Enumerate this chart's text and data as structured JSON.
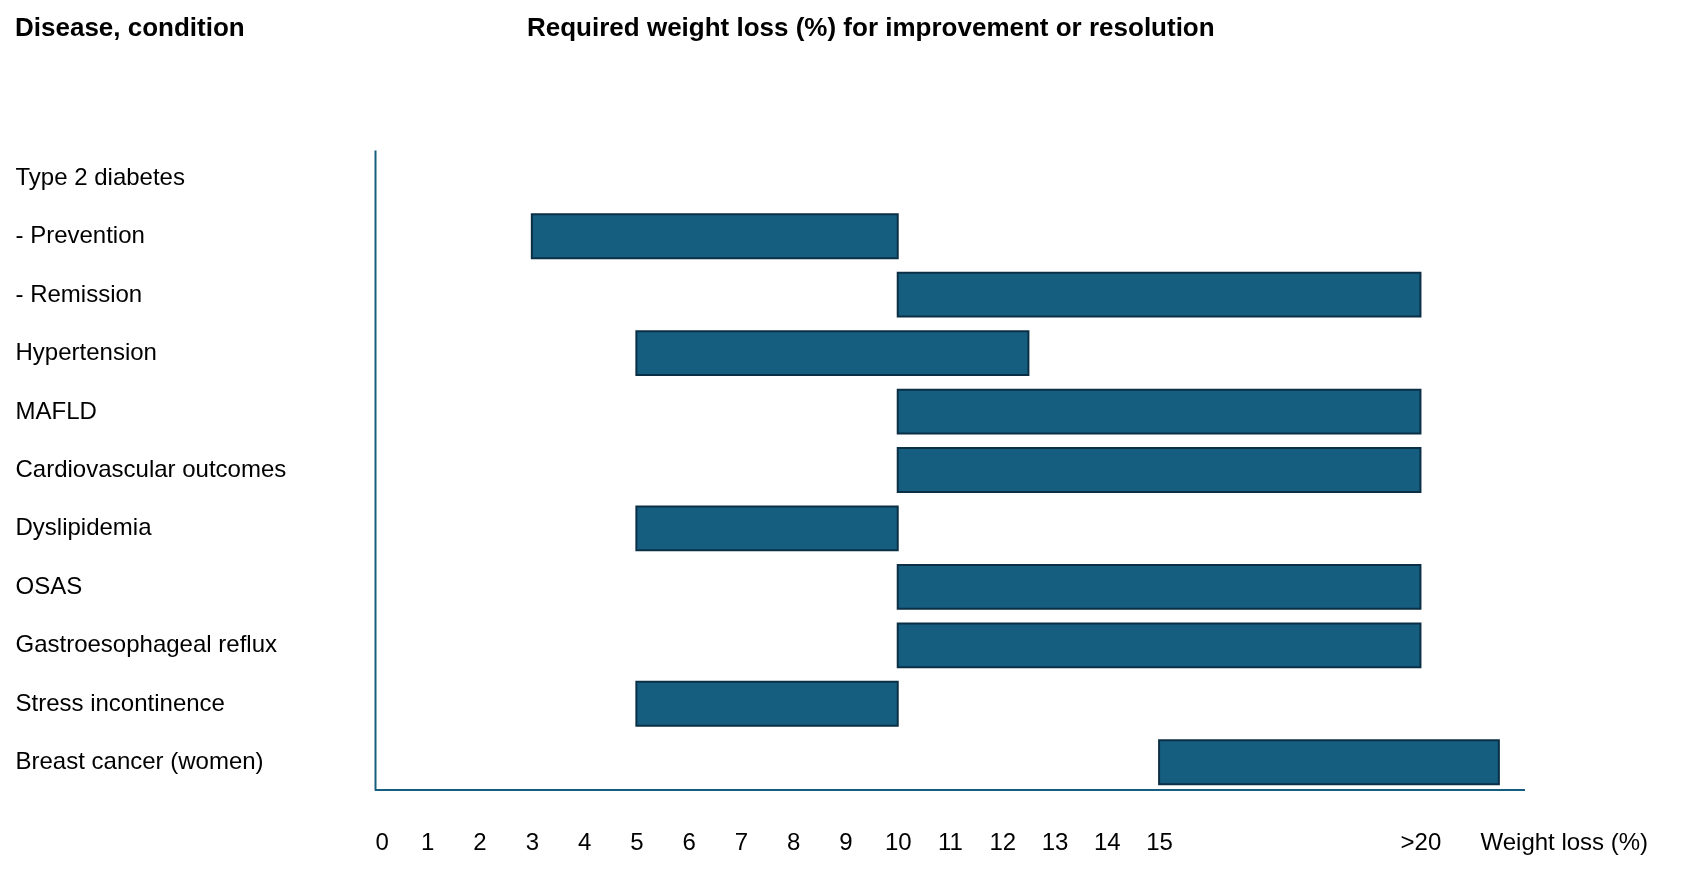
{
  "chart_data": {
    "type": "bar",
    "orientation": "horizontal",
    "title": "Required weight loss (%) for improvement or resolution",
    "ylabel": "Disease, condition",
    "xlabel": "Weight loss (%)",
    "categories": [
      "Type 2 diabetes",
      "-    Prevention",
      "-    Remission",
      "Hypertension",
      "MAFLD",
      "Cardiovascular outcomes",
      "Dyslipidemia",
      "OSAS",
      "Gastroesophageal reflux",
      "Stress incontinence",
      "Breast cancer (women)"
    ],
    "base": [
      null,
      3,
      10,
      5,
      10,
      10,
      5,
      10,
      10,
      5,
      15
    ],
    "values": [
      null,
      7,
      10,
      7.5,
      10,
      10,
      5,
      10,
      10,
      5,
      6.5
    ],
    "color": "#165e80",
    "xlim": [
      0,
      22
    ],
    "xticks": [
      0,
      1,
      2,
      3,
      4,
      5,
      6,
      7,
      8,
      9,
      10,
      11,
      12,
      13,
      14,
      15,
      {
        "value": 20,
        "label": ">20"
      }
    ],
    "grid": false
  }
}
